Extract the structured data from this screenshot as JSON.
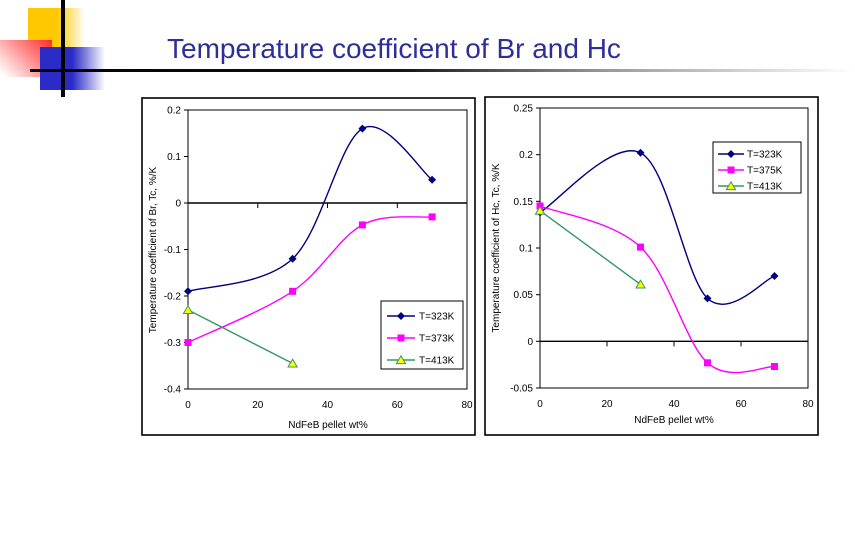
{
  "slide": {
    "title": "Temperature coefficient of Br and Hc",
    "title_color": "#2E2E9A"
  },
  "colors": {
    "series_323K": "#000080",
    "series_373K": "#FF00FF",
    "series_413K_line": "#339966",
    "series_413K_marker_fill": "#FFFF00",
    "axis": "#000000"
  },
  "chart_data": [
    {
      "type": "line",
      "title": "",
      "xlabel": "NdFeB pellet wt%",
      "ylabel": "Temperature coefficient of Br, Tc, %/K",
      "xlim": [
        0,
        80
      ],
      "ylim": [
        -0.4,
        0.2
      ],
      "xticks": [
        0,
        20,
        40,
        60,
        80
      ],
      "xtick_labels": [
        "0",
        "20",
        "40",
        "60",
        "80"
      ],
      "yticks": [
        0.2,
        0.1,
        0,
        -0.1,
        -0.2,
        -0.3,
        -0.4
      ],
      "ytick_labels": [
        "0.2",
        "0.1",
        "0",
        "-0.1",
        "-0.2",
        "-0.3",
        "-0.4"
      ],
      "grid": false,
      "legend_position": "inside-bottom-right",
      "series": [
        {
          "name": "T=323K",
          "marker": "diamond",
          "color": "#000080",
          "smooth": true,
          "x": [
            0,
            30,
            50,
            70
          ],
          "y": [
            -0.19,
            -0.12,
            0.16,
            0.05
          ]
        },
        {
          "name": "T=373K",
          "marker": "square",
          "color": "#FF00FF",
          "smooth": true,
          "x": [
            0,
            30,
            50,
            70
          ],
          "y": [
            -0.3,
            -0.19,
            -0.047,
            -0.03
          ]
        },
        {
          "name": "T=413K",
          "marker": "triangle",
          "color": "#339966",
          "marker_fill": "#FFFF00",
          "smooth": false,
          "x": [
            0,
            30
          ],
          "y": [
            -0.23,
            -0.345
          ]
        }
      ]
    },
    {
      "type": "line",
      "title": "",
      "xlabel": "NdFeB pellet wt%",
      "ylabel": "Temperature coefficient of Hc, Tc, %/K",
      "xlim": [
        0,
        80
      ],
      "ylim": [
        -0.05,
        0.25
      ],
      "xticks": [
        0,
        20,
        40,
        60,
        80
      ],
      "xtick_labels": [
        "0",
        "20",
        "40",
        "60",
        "80"
      ],
      "yticks": [
        0.25,
        0.2,
        0.15,
        0.1,
        0.05,
        0,
        -0.05
      ],
      "ytick_labels": [
        "0.25",
        "0.2",
        "0.15",
        "0.1",
        "0.05",
        "0",
        "-0.05"
      ],
      "grid": false,
      "legend_position": "inside-top-right",
      "series": [
        {
          "name": "T=323K",
          "marker": "diamond",
          "color": "#000080",
          "smooth": true,
          "x": [
            0,
            30,
            50,
            70
          ],
          "y": [
            0.138,
            0.202,
            0.046,
            0.07
          ]
        },
        {
          "name": "T=375K",
          "marker": "square",
          "color": "#FF00FF",
          "smooth": true,
          "x": [
            0,
            30,
            50,
            70
          ],
          "y": [
            0.145,
            0.101,
            -0.023,
            -0.027
          ]
        },
        {
          "name": "T=413K",
          "marker": "triangle",
          "color": "#339966",
          "marker_fill": "#FFFF00",
          "smooth": false,
          "x": [
            0,
            30
          ],
          "y": [
            0.14,
            0.061
          ]
        }
      ]
    }
  ]
}
